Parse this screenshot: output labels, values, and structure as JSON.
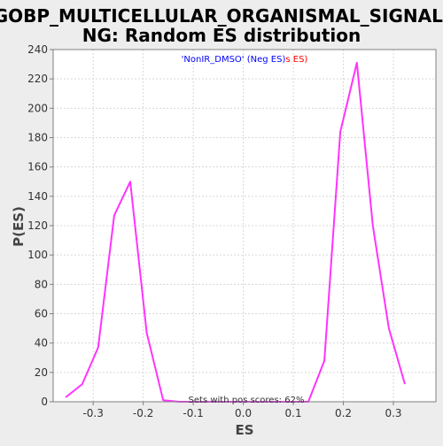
{
  "chart_data": {
    "type": "line",
    "title": "GOBP_MULTICELLULAR_ORGANISMAL_SIGNALING: Random ES distribution",
    "title_lines": [
      "GOBP_MULTICELLULAR_ORGANISMAL_SIGNALI",
      "NG: Random ES distribution"
    ],
    "xlabel": "ES",
    "ylabel": "P(ES)",
    "xlim": [
      -0.38,
      0.385
    ],
    "ylim": [
      0,
      240
    ],
    "xticks": [
      -0.3,
      -0.2,
      -0.1,
      0.0,
      0.1,
      0.2,
      0.3
    ],
    "xtick_labels": [
      "-0.3",
      "-0.2",
      "-0.1",
      "0.0",
      "0.1",
      "0.2",
      "0.3"
    ],
    "yticks": [
      0,
      20,
      40,
      60,
      80,
      100,
      120,
      140,
      160,
      180,
      200,
      220,
      240
    ],
    "ytick_labels": [
      "0",
      "20",
      "40",
      "60",
      "80",
      "100",
      "120",
      "140",
      "160",
      "180",
      "200",
      "220",
      "240"
    ],
    "grid": true,
    "legend": {
      "placement": "top-center",
      "part1": "'NonIR_DMSO' (Neg ES)",
      "part2": "s ES)",
      "color1": "#0000ff",
      "color2": "#ff0000"
    },
    "annotation": "Sets with pos scores: 62%",
    "series": [
      {
        "color": "#ff33ff",
        "x": [
          -0.355,
          -0.322,
          -0.29,
          -0.258,
          -0.226,
          -0.193,
          -0.16,
          -0.128,
          -0.096,
          -0.063,
          -0.031,
          0.001,
          0.033,
          0.065,
          0.098,
          0.13,
          0.162,
          0.194,
          0.227,
          0.259,
          0.291,
          0.323
        ],
        "y": [
          3,
          12,
          37,
          127,
          150,
          47,
          1,
          0,
          0,
          0,
          0,
          0,
          0,
          0,
          0,
          0,
          28,
          184,
          231,
          120,
          50,
          12
        ]
      }
    ]
  }
}
